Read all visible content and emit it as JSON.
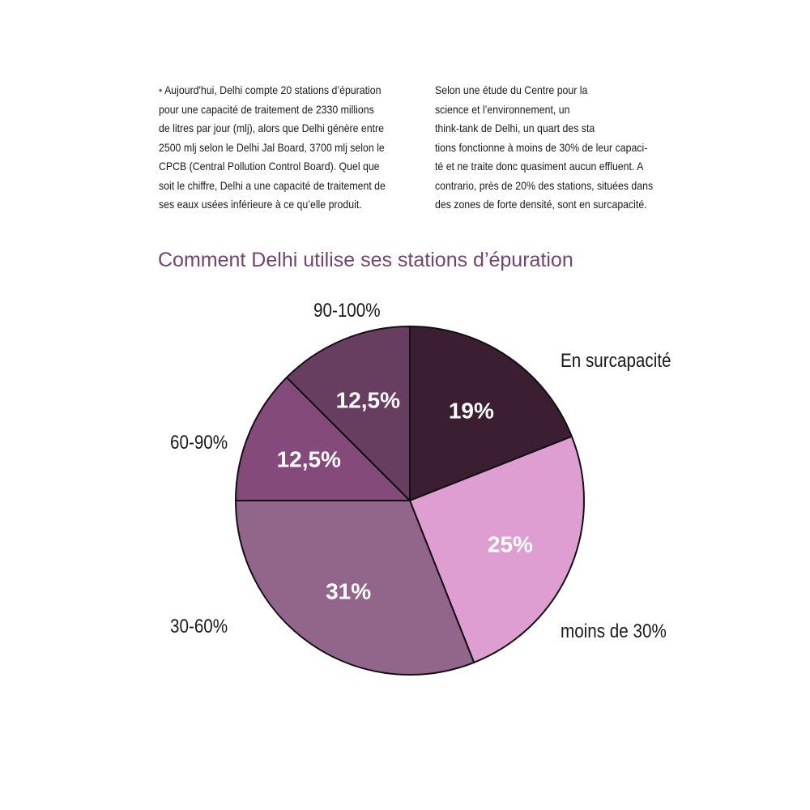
{
  "text": {
    "left_column": [
      "Aujourd'hui, Delhi compte 20 stations d’épuration",
      "pour une capacité de traitement de 2330 millions",
      "de litres par jour (mlj), alors que Delhi génère entre",
      "2500 mlj selon le Delhi Jal Board, 3700 mlj selon le",
      "CPCB (Central Pollution Control Board). Quel que",
      "soit le chiffre, Delhi a une capacité de traitement de",
      "ses eaux usées inférieure à ce qu’elle produit."
    ],
    "bullet": "•",
    "right_column": [
      "Selon une étude du Centre pour la",
      "science  et  l’environnement,   un",
      "think-tank de Delhi, un quart des sta",
      "tions fonctionne à moins de 30% de leur capaci-",
      "té et ne traite donc quasiment aucun effluent. A",
      "contrario, près de 20% des stations, situées dans",
      "des zones de forte densité, sont en surcapacité."
    ]
  },
  "chart_data": {
    "type": "pie",
    "title": "Comment Delhi utilise ses stations d’épuration",
    "slices": [
      {
        "label": "En surcapacité",
        "value": 19,
        "value_label": "19%",
        "color": "#3b1e31"
      },
      {
        "label": "moins de 30%",
        "value": 25,
        "value_label": "25%",
        "color": "#de9ed2"
      },
      {
        "label": "30-60%",
        "value": 31,
        "value_label": "31%",
        "color": "#92668b"
      },
      {
        "label": "60-90%",
        "value": 12.5,
        "value_label": "12,5%",
        "color": "#844a7a"
      },
      {
        "label": "90-100%",
        "value": 12.5,
        "value_label": "12,5%",
        "color": "#683e60"
      }
    ],
    "start": "12 o'clock",
    "direction": "clockwise",
    "label_color": "#ffffff",
    "outline_color": "#111111"
  }
}
